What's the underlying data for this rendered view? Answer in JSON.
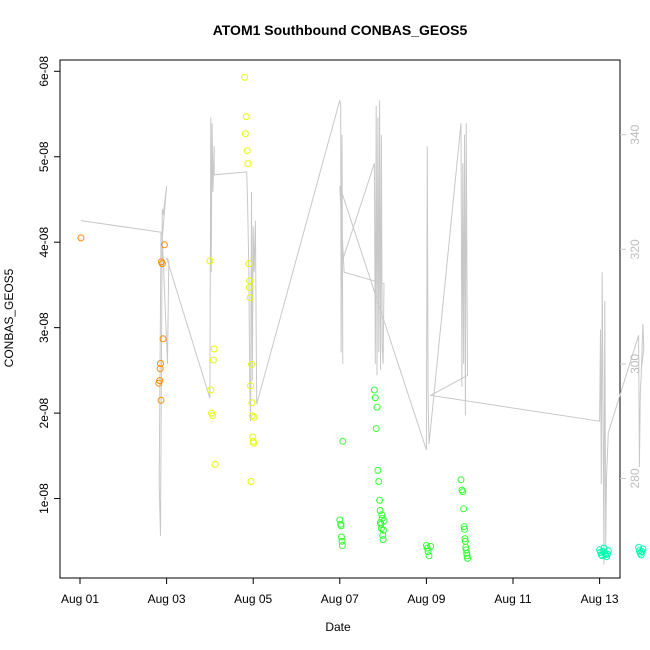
{
  "chart_data": {
    "type": "scatter",
    "title": "ATOM1 Southbound CONBAS_GEOS5",
    "xlabel": "Date",
    "ylabel": "CONBAS_GEOS5",
    "x_ticks": [
      "Aug 01",
      "Aug 03",
      "Aug 05",
      "Aug 07",
      "Aug 09",
      "Aug 11",
      "Aug 13"
    ],
    "x_range_days": [
      0,
      13
    ],
    "y_ticks": [
      "1e-08",
      "2e-08",
      "3e-08",
      "4e-08",
      "5e-08",
      "6e-08"
    ],
    "ylim": [
      2.2e-09,
      6.2e-08
    ],
    "y2_ticks": [
      "280",
      "300",
      "320",
      "340"
    ],
    "y2lim": [
      263,
      353
    ],
    "points_series": {
      "description_color": "rainbow by time",
      "groups": [
        {
          "color": "#ff8c00",
          "points": [
            [
              0.02,
              4.05e-08
            ],
            [
              1.82,
              2.35e-08
            ],
            [
              1.84,
              2.38e-08
            ],
            [
              1.85,
              2.52e-08
            ],
            [
              1.86,
              2.58e-08
            ],
            [
              1.87,
              2.15e-08
            ],
            [
              1.88,
              3.77e-08
            ],
            [
              1.9,
              3.75e-08
            ],
            [
              1.92,
              2.87e-08
            ],
            [
              1.95,
              3.97e-08
            ]
          ]
        },
        {
          "color": "#e6ff00",
          "points": [
            [
              3.0,
              3.78e-08
            ],
            [
              3.02,
              2.27e-08
            ],
            [
              3.04,
              2e-08
            ],
            [
              3.06,
              1.97e-08
            ],
            [
              3.08,
              2.62e-08
            ],
            [
              3.1,
              2.75e-08
            ],
            [
              3.12,
              1.4e-08
            ],
            [
              3.8,
              5.93e-08
            ],
            [
              3.82,
              5.27e-08
            ],
            [
              3.84,
              5.47e-08
            ],
            [
              3.86,
              5.07e-08
            ],
            [
              3.88,
              4.92e-08
            ],
            [
              3.9,
              3.75e-08
            ],
            [
              3.91,
              3.47e-08
            ],
            [
              3.92,
              3.55e-08
            ],
            [
              3.93,
              3.35e-08
            ],
            [
              3.94,
              2.32e-08
            ],
            [
              3.95,
              1.2e-08
            ],
            [
              3.96,
              2.57e-08
            ],
            [
              3.97,
              2.12e-08
            ],
            [
              3.98,
              1.97e-08
            ],
            [
              3.99,
              1.72e-08
            ],
            [
              4.0,
              1.67e-08
            ],
            [
              4.01,
              1.65e-08
            ],
            [
              4.02,
              1.95e-08
            ]
          ]
        },
        {
          "color": "#33ff33",
          "points": [
            [
              6.0,
              7.5e-09
            ],
            [
              6.02,
              7e-09
            ],
            [
              6.03,
              6.8e-09
            ],
            [
              6.04,
              5.5e-09
            ],
            [
              6.05,
              5e-09
            ],
            [
              6.06,
              4.5e-09
            ],
            [
              6.07,
              1.67e-08
            ],
            [
              6.8,
              2.27e-08
            ],
            [
              6.82,
              2.18e-08
            ],
            [
              6.84,
              1.82e-08
            ],
            [
              6.86,
              2.07e-08
            ],
            [
              6.88,
              1.33e-08
            ],
            [
              6.9,
              1.2e-08
            ],
            [
              6.92,
              9.8e-09
            ],
            [
              6.93,
              8.6e-09
            ],
            [
              6.94,
              7.2e-09
            ],
            [
              6.95,
              7e-09
            ],
            [
              6.96,
              6.5e-09
            ],
            [
              6.97,
              8.1e-09
            ],
            [
              6.98,
              7.7e-09
            ],
            [
              6.99,
              5.7e-09
            ],
            [
              7.0,
              5.2e-09
            ],
            [
              7.01,
              6.3e-09
            ],
            [
              7.02,
              7.4e-09
            ],
            [
              8.0,
              4.5e-09
            ],
            [
              8.02,
              4.2e-09
            ],
            [
              8.04,
              3.8e-09
            ],
            [
              8.06,
              3.3e-09
            ],
            [
              8.1,
              4.4e-09
            ],
            [
              8.8,
              1.22e-08
            ],
            [
              8.82,
              1.1e-08
            ],
            [
              8.84,
              1.08e-08
            ],
            [
              8.86,
              8.8e-09
            ],
            [
              8.87,
              6.7e-09
            ],
            [
              8.88,
              6.4e-09
            ],
            [
              8.89,
              5.3e-09
            ],
            [
              8.9,
              5e-09
            ],
            [
              8.91,
              4.3e-09
            ],
            [
              8.92,
              4e-09
            ],
            [
              8.93,
              3.6e-09
            ],
            [
              8.94,
              3.3e-09
            ],
            [
              8.95,
              3e-09
            ]
          ]
        },
        {
          "color": "#00ffb0",
          "points": [
            [
              12.0,
              4e-09
            ],
            [
              12.02,
              3.7e-09
            ],
            [
              12.04,
              3.4e-09
            ],
            [
              12.06,
              3.3e-09
            ],
            [
              12.08,
              3.8e-09
            ],
            [
              12.1,
              4.2e-09
            ],
            [
              12.12,
              3.6e-09
            ],
            [
              12.14,
              3.4e-09
            ],
            [
              12.16,
              3.2e-09
            ],
            [
              12.18,
              3.5e-09
            ],
            [
              12.2,
              3.9e-09
            ],
            [
              12.9,
              4.3e-09
            ],
            [
              12.92,
              3.9e-09
            ],
            [
              12.94,
              3.6e-09
            ],
            [
              12.96,
              3.4e-09
            ],
            [
              12.98,
              3.8e-09
            ],
            [
              13.0,
              4.1e-09
            ]
          ]
        }
      ]
    },
    "line_series": {
      "color": "#c8c8c8",
      "points": [
        [
          0.02,
          325.0
        ],
        [
          1.85,
          323.0
        ],
        [
          1.87,
          323.0
        ],
        [
          1.83,
          279.0
        ],
        [
          1.86,
          270.0
        ],
        [
          1.9,
          327.0
        ],
        [
          1.92,
          326.0
        ],
        [
          2.0,
          331.0
        ],
        [
          1.9,
          322.0
        ],
        [
          2.02,
          300.0
        ],
        [
          2.05,
          318.0
        ],
        [
          2.0,
          318.5
        ],
        [
          3.0,
          294.0
        ],
        [
          3.02,
          343.0
        ],
        [
          3.03,
          316.0
        ],
        [
          3.05,
          342.0
        ],
        [
          3.07,
          330.0
        ],
        [
          3.1,
          338.0
        ],
        [
          3.1,
          333.0
        ],
        [
          3.85,
          333.5
        ],
        [
          3.87,
          328.0
        ],
        [
          3.9,
          316.0
        ],
        [
          3.92,
          297.0
        ],
        [
          3.94,
          290.0
        ],
        [
          3.96,
          330.0
        ],
        [
          3.98,
          297.0
        ],
        [
          4.0,
          324.0
        ],
        [
          4.02,
          316.0
        ],
        [
          4.05,
          325.0
        ],
        [
          4.08,
          293.0
        ],
        [
          6.0,
          346.0
        ],
        [
          6.02,
          345.0
        ],
        [
          6.03,
          302.0
        ],
        [
          6.05,
          340.0
        ],
        [
          6.07,
          300.0
        ],
        [
          6.05,
          330.0
        ],
        [
          6.06,
          318.0
        ],
        [
          6.8,
          335.0
        ],
        [
          6.82,
          300.0
        ],
        [
          6.84,
          345.0
        ],
        [
          6.86,
          298.0
        ],
        [
          6.88,
          343.0
        ],
        [
          6.9,
          302.0
        ],
        [
          6.92,
          346.0
        ],
        [
          6.94,
          299.0
        ],
        [
          6.96,
          340.0
        ],
        [
          6.98,
          303.0
        ],
        [
          7.0,
          300.0
        ],
        [
          7.02,
          314.0
        ],
        [
          6.1,
          316.0
        ],
        [
          6.0,
          331.0
        ],
        [
          8.0,
          285.0
        ],
        [
          8.02,
          338.0
        ],
        [
          8.04,
          294.0
        ],
        [
          8.06,
          286.0
        ],
        [
          8.8,
          342.0
        ],
        [
          8.82,
          296.0
        ],
        [
          8.84,
          335.0
        ],
        [
          8.86,
          300.0
        ],
        [
          8.88,
          340.0
        ],
        [
          8.9,
          291.0
        ],
        [
          8.92,
          342.0
        ],
        [
          8.95,
          298.0
        ],
        [
          8.1,
          294.5
        ],
        [
          12.0,
          290.0
        ],
        [
          12.02,
          306.0
        ],
        [
          12.04,
          279.0
        ],
        [
          12.06,
          316.0
        ],
        [
          12.08,
          290.0
        ],
        [
          12.1,
          265.0
        ],
        [
          12.12,
          311.0
        ],
        [
          12.14,
          268.0
        ],
        [
          12.16,
          280.0
        ],
        [
          12.2,
          288.0
        ],
        [
          12.9,
          305.0
        ],
        [
          12.92,
          282.0
        ],
        [
          12.94,
          295.0
        ],
        [
          12.96,
          298.0
        ],
        [
          13.0,
          307.0
        ],
        [
          13.02,
          302.5
        ],
        [
          12.96,
          299.0
        ]
      ]
    }
  }
}
